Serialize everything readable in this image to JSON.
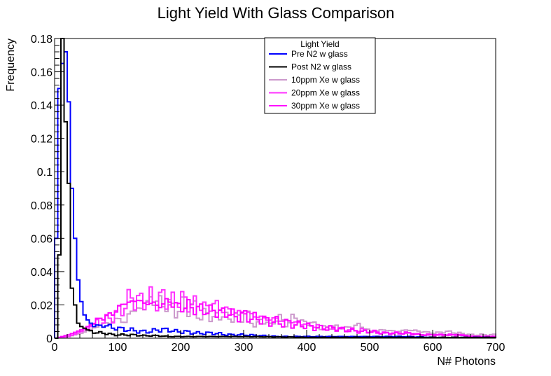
{
  "chart_data": {
    "type": "line",
    "title": "Light Yield With Glass Comparison",
    "xlabel": "N# Photons",
    "ylabel": "Frequency",
    "xlim": [
      0,
      700
    ],
    "ylim": [
      0,
      0.18
    ],
    "x_ticks": [
      "0",
      "100",
      "200",
      "300",
      "400",
      "500",
      "600",
      "700"
    ],
    "y_ticks": [
      "0",
      "0.02",
      "0.04",
      "0.06",
      "0.08",
      "0.1",
      "0.12",
      "0.14",
      "0.16",
      "0.18"
    ],
    "grid": false,
    "legend": {
      "title": "Light Yield",
      "position": "top-center"
    },
    "bin_width": 5,
    "series": [
      {
        "name": "Pre N2 w glass",
        "color": "#0000ff",
        "x": [
          0,
          5,
          10,
          15,
          20,
          25,
          30,
          35,
          40,
          45,
          50,
          55,
          60,
          70,
          80,
          90,
          100,
          110,
          120,
          130,
          140,
          150,
          160,
          170,
          180,
          190,
          200,
          225,
          250,
          275,
          300,
          350,
          400,
          450,
          500,
          550,
          600,
          650,
          695
        ],
        "y": [
          0.06,
          0.15,
          0.165,
          0.172,
          0.142,
          0.09,
          0.06,
          0.035,
          0.022,
          0.014,
          0.011,
          0.009,
          0.008,
          0.007,
          0.008,
          0.006,
          0.006,
          0.005,
          0.005,
          0.004,
          0.004,
          0.004,
          0.005,
          0.005,
          0.005,
          0.004,
          0.004,
          0.003,
          0.003,
          0.002,
          0.002,
          0.001,
          0.001,
          0.001,
          0.001,
          0.001,
          0.0005,
          0.0005,
          0.0005
        ]
      },
      {
        "name": "Post N2 w glass",
        "color": "#000000",
        "x": [
          0,
          5,
          10,
          15,
          20,
          25,
          30,
          35,
          40,
          45,
          50,
          60,
          70,
          80,
          90,
          100,
          120,
          140,
          160,
          180,
          200,
          250,
          300,
          350,
          400,
          500,
          600,
          695
        ],
        "y": [
          0.0,
          0.05,
          0.18,
          0.13,
          0.093,
          0.03,
          0.02,
          0.009,
          0.007,
          0.006,
          0.005,
          0.004,
          0.003,
          0.003,
          0.002,
          0.002,
          0.002,
          0.0015,
          0.0015,
          0.001,
          0.001,
          0.001,
          0.001,
          0.0008,
          0.0005,
          0.0005,
          0.0005,
          0.0005
        ]
      },
      {
        "name": "10ppm Xe w glass",
        "color": "#cc99cc",
        "x": [
          0,
          20,
          40,
          60,
          70,
          80,
          90,
          100,
          110,
          120,
          130,
          140,
          150,
          160,
          170,
          180,
          190,
          200,
          210,
          220,
          230,
          240,
          250,
          260,
          270,
          280,
          290,
          300,
          310,
          320,
          330,
          340,
          350,
          360,
          370,
          380,
          390,
          400,
          420,
          440,
          460,
          480,
          500,
          520,
          540,
          560,
          580,
          600,
          620,
          640,
          660,
          680,
          695
        ],
        "y": [
          0.0,
          0.001,
          0.003,
          0.006,
          0.008,
          0.009,
          0.01,
          0.012,
          0.009,
          0.018,
          0.016,
          0.02,
          0.022,
          0.024,
          0.019,
          0.021,
          0.015,
          0.02,
          0.017,
          0.019,
          0.012,
          0.016,
          0.011,
          0.015,
          0.012,
          0.013,
          0.012,
          0.015,
          0.01,
          0.008,
          0.012,
          0.007,
          0.013,
          0.01,
          0.009,
          0.014,
          0.009,
          0.01,
          0.006,
          0.007,
          0.006,
          0.008,
          0.004,
          0.005,
          0.004,
          0.005,
          0.004,
          0.003,
          0.004,
          0.003,
          0.002,
          0.002,
          0.002
        ]
      },
      {
        "name": "20ppm Xe w glass",
        "color": "#ff33ff",
        "x": [
          0,
          20,
          40,
          60,
          70,
          80,
          90,
          100,
          110,
          120,
          130,
          140,
          150,
          160,
          170,
          180,
          190,
          200,
          210,
          220,
          230,
          240,
          250,
          260,
          270,
          280,
          290,
          300,
          310,
          320,
          330,
          340,
          350,
          360,
          370,
          380,
          390,
          400,
          420,
          440,
          460,
          480,
          500,
          520,
          540,
          560,
          580,
          600,
          620,
          640,
          660,
          680,
          695
        ],
        "y": [
          0.0,
          0.001,
          0.004,
          0.008,
          0.01,
          0.011,
          0.013,
          0.016,
          0.02,
          0.025,
          0.022,
          0.023,
          0.024,
          0.022,
          0.025,
          0.021,
          0.023,
          0.024,
          0.02,
          0.021,
          0.02,
          0.018,
          0.021,
          0.018,
          0.017,
          0.016,
          0.015,
          0.016,
          0.014,
          0.013,
          0.012,
          0.011,
          0.012,
          0.01,
          0.011,
          0.009,
          0.009,
          0.008,
          0.007,
          0.006,
          0.005,
          0.005,
          0.004,
          0.003,
          0.003,
          0.003,
          0.002,
          0.002,
          0.002,
          0.002,
          0.001,
          0.001,
          0.001
        ]
      },
      {
        "name": "30ppm Xe w glass",
        "color": "#ff00ff",
        "x": [
          0,
          20,
          40,
          60,
          70,
          80,
          90,
          100,
          110,
          120,
          130,
          140,
          150,
          160,
          170,
          180,
          190,
          200,
          210,
          220,
          230,
          240,
          250,
          260,
          270,
          280,
          290,
          300,
          310,
          320,
          330,
          340,
          350,
          360,
          370,
          380,
          390,
          400,
          420,
          440,
          460,
          480,
          500,
          520,
          540,
          560,
          580,
          600,
          620,
          640,
          660,
          680,
          695
        ],
        "y": [
          0.0,
          0.002,
          0.005,
          0.009,
          0.012,
          0.013,
          0.015,
          0.018,
          0.022,
          0.021,
          0.024,
          0.02,
          0.022,
          0.019,
          0.021,
          0.022,
          0.02,
          0.018,
          0.02,
          0.017,
          0.018,
          0.016,
          0.017,
          0.015,
          0.016,
          0.014,
          0.013,
          0.014,
          0.012,
          0.012,
          0.011,
          0.01,
          0.01,
          0.009,
          0.009,
          0.008,
          0.008,
          0.007,
          0.006,
          0.006,
          0.005,
          0.004,
          0.004,
          0.003,
          0.003,
          0.003,
          0.002,
          0.002,
          0.002,
          0.002,
          0.001,
          0.001,
          0.001
        ]
      }
    ]
  }
}
